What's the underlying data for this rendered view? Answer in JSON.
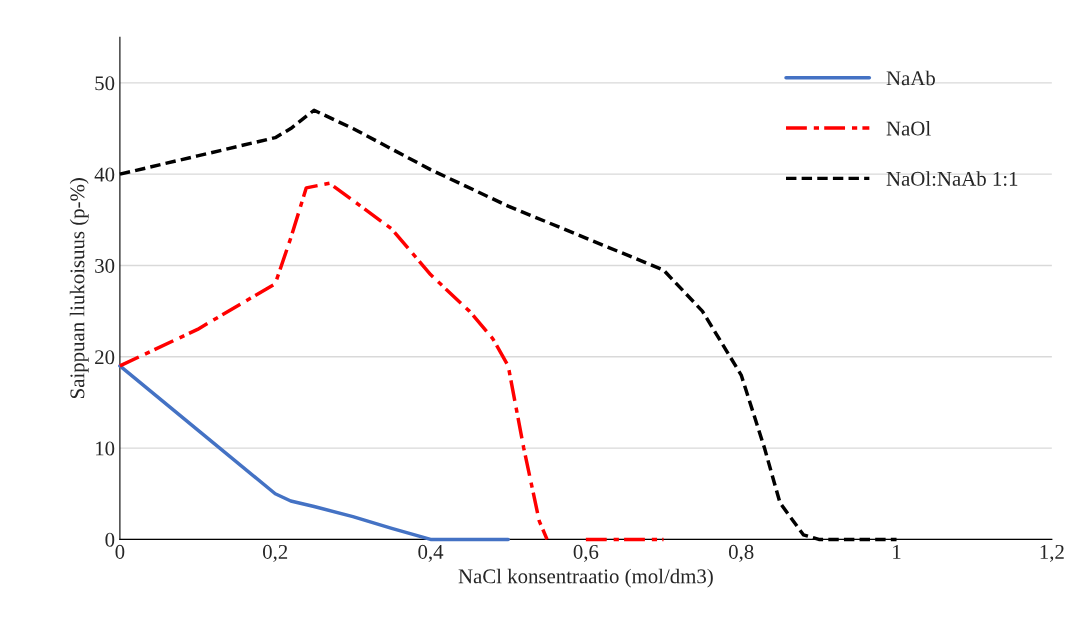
{
  "chart_data": {
    "type": "line",
    "xlabel": "NaCl konsentraatio (mol/dm3)",
    "ylabel": "Saippuan liukoisuus (p-%)",
    "xlim": [
      0,
      1.2
    ],
    "ylim": [
      0,
      55
    ],
    "xticks": [
      0,
      {
        "value": 0.2,
        "label": "0,2"
      },
      {
        "value": 0.4,
        "label": "0,4"
      },
      {
        "value": 0.6,
        "label": "0,6"
      },
      {
        "value": 0.8,
        "label": "0,8"
      },
      1,
      {
        "value": 1.2,
        "label": "1,2"
      }
    ],
    "yticks": [
      0,
      10,
      20,
      30,
      40,
      50
    ],
    "grid": "y",
    "legend": "top right",
    "marker": "none",
    "series": [
      {
        "name": "NaAb",
        "color": "#4472c4",
        "line_style": "solid",
        "x": [
          0,
          0.1,
          0.2,
          0.22,
          0.25,
          0.3,
          0.35,
          0.4,
          0.5
        ],
        "values": [
          19,
          12,
          5,
          4.2,
          3.6,
          2.5,
          1.2,
          0,
          0
        ]
      },
      {
        "name": "NaOl",
        "color": "#ff0000",
        "line_style": "dashdot",
        "x": [
          0,
          0.1,
          0.2,
          0.22,
          0.24,
          0.27,
          0.35,
          0.4,
          0.45,
          0.48,
          0.5,
          0.52,
          0.54,
          0.55,
          0.575,
          0.6,
          0.7
        ],
        "values": [
          19,
          23,
          28,
          33,
          38.5,
          39,
          34,
          29,
          25,
          22,
          19,
          10,
          2,
          0,
          null,
          0,
          0
        ]
      },
      {
        "name": "NaOl:NaAb 1:1",
        "color": "#000000",
        "line_style": "dashed",
        "x": [
          0,
          0.1,
          0.2,
          0.22,
          0.25,
          0.3,
          0.4,
          0.5,
          0.6,
          0.7,
          0.75,
          0.8,
          0.83,
          0.85,
          0.88,
          0.9,
          1.0
        ],
        "values": [
          40,
          42,
          44,
          45,
          47,
          45,
          40.5,
          36.5,
          33,
          29.5,
          25,
          18,
          10,
          4,
          0.5,
          0,
          0
        ]
      }
    ]
  }
}
